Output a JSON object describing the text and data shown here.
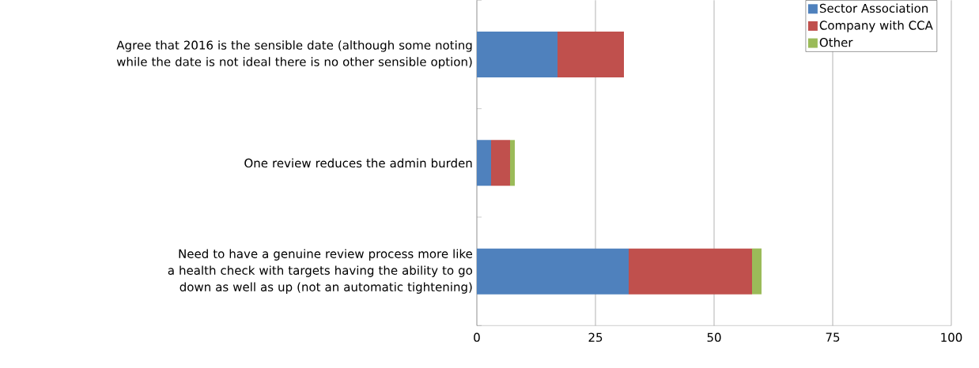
{
  "chart_data": {
    "type": "bar",
    "orientation": "horizontal",
    "stacked": true,
    "categories": [
      "Agree that 2016 is the sensible date (although some noting while the date is not ideal there is no other sensible option)",
      "One review reduces the admin burden",
      "Need to have a genuine review process more like a health check with targets having the ability to go down as well as up (not an automatic tightening)"
    ],
    "series": [
      {
        "name": "Sector Association",
        "color": "#4f81bd",
        "values": [
          17,
          3,
          32
        ]
      },
      {
        "name": "Company with CCA",
        "color": "#c0504d",
        "values": [
          14,
          4,
          26
        ]
      },
      {
        "name": "Other",
        "color": "#9bbb59",
        "values": [
          0,
          1,
          2
        ]
      }
    ],
    "xlim": [
      0,
      100
    ],
    "xticks": [
      0,
      25,
      50,
      75,
      100
    ],
    "grid": "x",
    "legend": "top right"
  }
}
